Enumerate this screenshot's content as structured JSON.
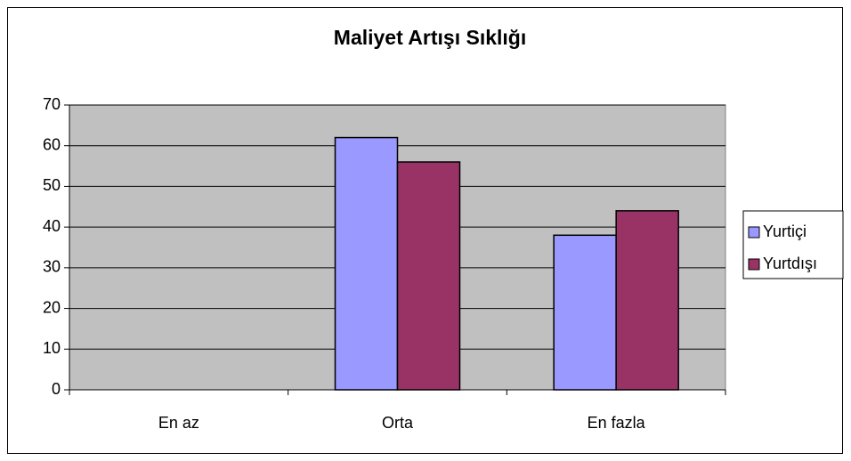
{
  "chart_data": {
    "type": "bar",
    "title": "Maliyet Artışı Sıklığı",
    "categories": [
      "En az",
      "Orta",
      "En fazla"
    ],
    "series": [
      {
        "name": "Yurtiçi",
        "color": "#9999ff",
        "values": [
          0,
          62,
          38
        ]
      },
      {
        "name": "Yurtdışı",
        "color": "#993366",
        "values": [
          0,
          56,
          44
        ]
      }
    ],
    "ylim": [
      0,
      70
    ],
    "yticks": [
      0,
      10,
      20,
      30,
      40,
      50,
      60,
      70
    ],
    "grid": true,
    "legend": "right"
  }
}
